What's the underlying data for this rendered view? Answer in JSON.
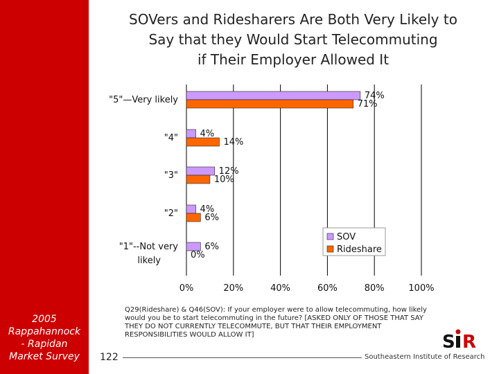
{
  "sidebar": {
    "label": "2005\nRappahannock\n- Rapidan\nMarket Survey"
  },
  "title": {
    "lines": [
      "SOVers and Ridesharers Are Both Very Likely to",
      "Say that they Would Start Telecommuting",
      "if Their Employer Allowed It"
    ]
  },
  "footnote": "Q29(Rideshare) & Q46(SOV): If your employer were to allow telecommuting, how likely would you be to start telecommuting in the future? [ASKED ONLY OF THOSE THAT SAY THEY DO NOT CURRENTLY TELECOMMUTE, BUT THAT THEIR EMPLOYMENT RESPONSIBILITIES WOULD ALLOW IT]",
  "footer": {
    "page_number": "122",
    "organization": "Southeastern Institute of Research"
  },
  "logo": {
    "text": "SIR"
  },
  "colors": {
    "sidebar": "#cc0000",
    "sov": "#cc99ff",
    "rideshare": "#ff6600"
  },
  "chart_data": {
    "type": "bar",
    "orientation": "horizontal",
    "categories": [
      "\"5\"—Very likely",
      "\"4\"",
      "\"3\"",
      "\"2\"",
      "\"1\"--Not very likely"
    ],
    "series": [
      {
        "name": "SOV",
        "values": [
          74,
          4,
          12,
          4,
          6
        ],
        "labels": [
          "74%",
          "4%",
          "12%",
          "4%",
          "6%"
        ]
      },
      {
        "name": "Rideshare",
        "values": [
          71,
          14,
          10,
          6,
          0
        ],
        "labels": [
          "71%",
          "14%",
          "10%",
          "6%",
          "0%"
        ]
      }
    ],
    "xlim": [
      0,
      100
    ],
    "xticks": [
      "0%",
      "20%",
      "40%",
      "60%",
      "80%",
      "100%"
    ],
    "grid": true,
    "legend": "bottom-right"
  }
}
